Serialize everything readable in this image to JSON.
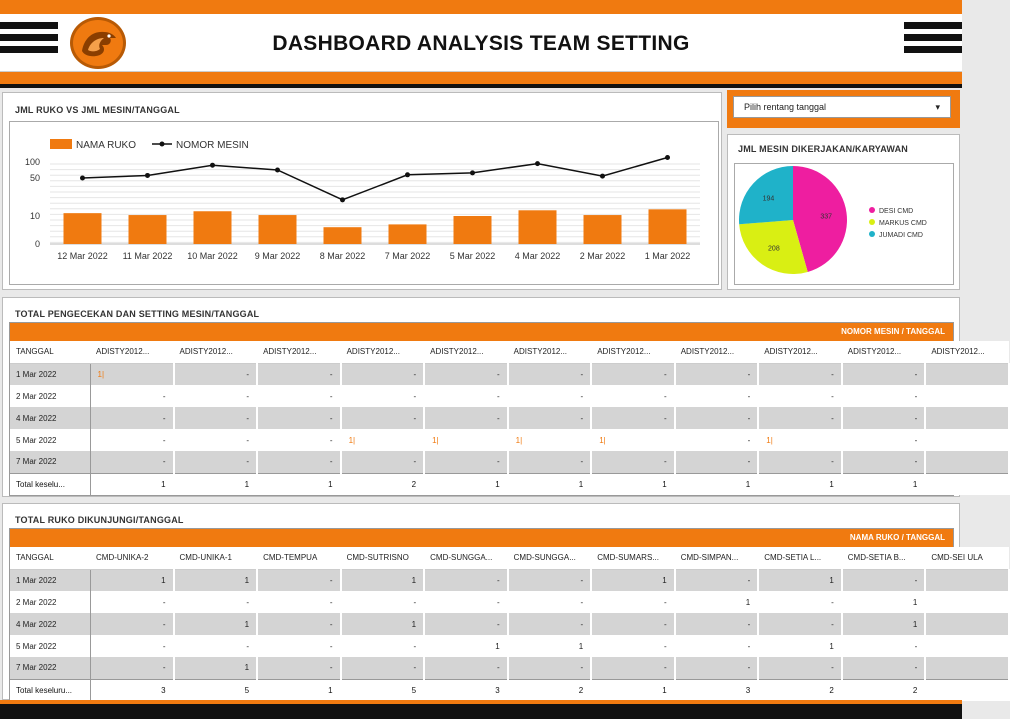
{
  "header": {
    "title": "DASHBOARD ANALYSIS TEAM SETTING"
  },
  "colors": {
    "accent": "#f07a10",
    "dark": "#111111",
    "pink": "#ee1ea0",
    "lime": "#d9ef13",
    "teal": "#1fb2c9"
  },
  "combo": {
    "title": "JML RUKO VS JML MESIN/TANGGAL",
    "legend": {
      "bar": "NAMA RUKO",
      "line": "NOMOR MESIN"
    },
    "y_ticks": [
      "100",
      "50",
      "10",
      "0"
    ]
  },
  "date_picker": {
    "label": "Pilih rentang tanggal",
    "arrow": "▾"
  },
  "pie": {
    "title": "JML MESIN DIKERJAKAN/KARYAWAN",
    "slice_labels": [
      "337",
      "208",
      "194"
    ],
    "legend": [
      "DESI CMD",
      "MARKUS CMD",
      "JUMADI CMD"
    ]
  },
  "chart_data": [
    {
      "type": "bar",
      "categories": [
        "12 Mar 2022",
        "11 Mar 2022",
        "10 Mar 2022",
        "9 Mar 2022",
        "8 Mar 2022",
        "7 Mar 2022",
        "5 Mar 2022",
        "4 Mar 2022",
        "2 Mar 2022",
        "1 Mar 2022"
      ],
      "series": [
        {
          "name": "NAMA RUKO",
          "type": "bar",
          "values": [
            13,
            11,
            15,
            11,
            6,
            7,
            10,
            16,
            11,
            17
          ]
        },
        {
          "name": "NOMOR MESIN",
          "type": "line",
          "values": [
            50,
            58,
            90,
            75,
            27,
            60,
            66,
            95,
            56,
            115
          ]
        }
      ],
      "title": "JML RUKO VS JML MESIN/TANGGAL",
      "y_ticks": [
        0,
        10,
        50,
        100
      ],
      "legend_position": "top-left",
      "grid": true
    },
    {
      "type": "pie",
      "labels": [
        "DESI CMD",
        "MARKUS CMD",
        "JUMADI CMD"
      ],
      "values": [
        337,
        208,
        194
      ],
      "title": "JML MESIN DIKERJAKAN/KARYAWAN",
      "legend_position": "right"
    }
  ],
  "table1": {
    "title": "TOTAL PENGECEKAN DAN SETTING MESIN/TANGGAL",
    "header_bar": "NOMOR MESIN / TANGGAL",
    "columns": [
      "TANGGAL",
      "ADISTY2012...",
      "ADISTY2012...",
      "ADISTY2012...",
      "ADISTY2012...",
      "ADISTY2012...",
      "ADISTY2012...",
      "ADISTY2012...",
      "ADISTY2012...",
      "ADISTY2012...",
      "ADISTY2012...",
      "ADISTY2012..."
    ],
    "rows": [
      [
        "1 Mar 2022",
        "1|",
        "-",
        "-",
        "-",
        "-",
        "-",
        "-",
        "-",
        "-",
        "-",
        ""
      ],
      [
        "2 Mar 2022",
        "-",
        "-",
        "-",
        "-",
        "-",
        "-",
        "-",
        "-",
        "-",
        "-",
        ""
      ],
      [
        "4 Mar 2022",
        "-",
        "-",
        "-",
        "-",
        "-",
        "-",
        "-",
        "-",
        "-",
        "-",
        ""
      ],
      [
        "5 Mar 2022",
        "-",
        "-",
        "-",
        "1|",
        "1|",
        "1|",
        "1|",
        "-",
        "1|",
        "-",
        ""
      ],
      [
        "7 Mar 2022",
        "-",
        "-",
        "-",
        "-",
        "-",
        "-",
        "-",
        "-",
        "-",
        "-",
        ""
      ],
      [
        "Total keselu...",
        "1",
        "1",
        "1",
        "2",
        "1",
        "1",
        "1",
        "1",
        "1",
        "1",
        ""
      ]
    ]
  },
  "table2": {
    "title": "TOTAL RUKO DIKUNJUNGI/TANGGAL",
    "header_bar": "NAMA RUKO / TANGGAL",
    "columns": [
      "TANGGAL",
      "CMD-UNIKA-2",
      "CMD-UNIKA-1",
      "CMD-TEMPUA",
      "CMD-SUTRISNO",
      "CMD-SUNGGA...",
      "CMD-SUNGGA...",
      "CMD-SUMARS...",
      "CMD-SIMPAN...",
      "CMD-SETIA L...",
      "CMD-SETIA B...",
      "CMD-SEI ULA"
    ],
    "rows": [
      [
        "1 Mar 2022",
        "1",
        "1",
        "-",
        "1",
        "-",
        "-",
        "1",
        "-",
        "1",
        "-",
        ""
      ],
      [
        "2 Mar 2022",
        "-",
        "-",
        "-",
        "-",
        "-",
        "-",
        "-",
        "1",
        "-",
        "1",
        ""
      ],
      [
        "4 Mar 2022",
        "-",
        "1",
        "-",
        "1",
        "-",
        "-",
        "-",
        "-",
        "-",
        "1",
        ""
      ],
      [
        "5 Mar 2022",
        "-",
        "-",
        "-",
        "-",
        "1",
        "1",
        "-",
        "-",
        "1",
        "-",
        ""
      ],
      [
        "7 Mar 2022",
        "-",
        "1",
        "-",
        "-",
        "-",
        "-",
        "-",
        "-",
        "-",
        "-",
        ""
      ],
      [
        "Total keseluru...",
        "3",
        "5",
        "1",
        "5",
        "3",
        "2",
        "1",
        "3",
        "2",
        "2",
        ""
      ]
    ]
  }
}
